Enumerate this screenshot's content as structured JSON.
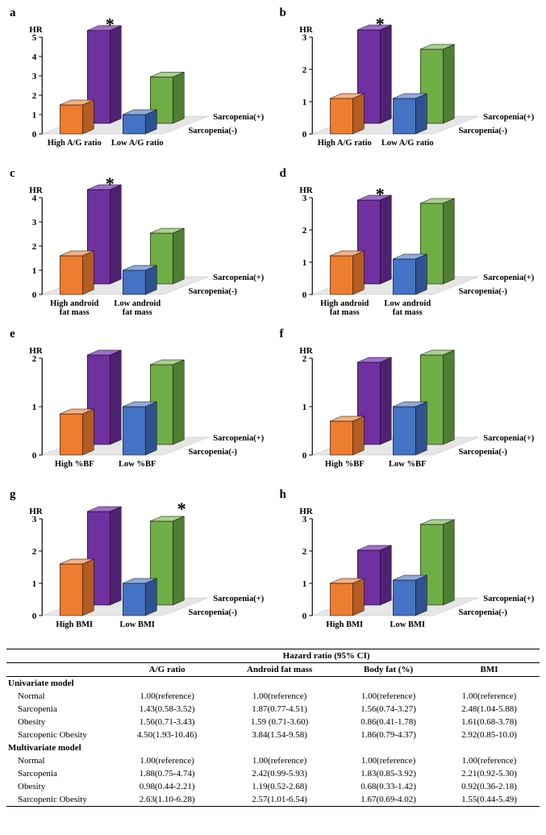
{
  "colors": {
    "orange": "#ed7d31",
    "orange_side": "#b35c23",
    "orange_top": "#f6b183",
    "purple": "#7030a0",
    "purple_side": "#4f2172",
    "purple_top": "#a06ecb",
    "blue": "#4472c4",
    "blue_side": "#2f528f",
    "blue_top": "#8faadc",
    "green": "#70ad47",
    "green_side": "#507e33",
    "green_top": "#a9d18e",
    "floor": "#e7e6e6",
    "floor_edge": "#bfbfbf"
  },
  "axis_title": "HR",
  "depth_labels": [
    "Sarcopenia(+)",
    "Sarcopenia(-)"
  ],
  "panels": {
    "a": {
      "letter": "a",
      "star": true,
      "star_after": "front",
      "ymax": 5,
      "ytick_step": 1,
      "cats": [
        "High A/G ratio",
        "Low A/G ratio"
      ],
      "bars": {
        "front_left": 1.5,
        "back_left": 4.8,
        "front_right": 1.0,
        "back_right": 2.4
      }
    },
    "b": {
      "letter": "b",
      "star": true,
      "star_after": "front",
      "ymax": 3,
      "ytick_step": 1,
      "cats": [
        "High A/G ratio",
        "Low A/G ratio"
      ],
      "bars": {
        "front_left": 1.1,
        "back_left": 2.9,
        "front_right": 1.1,
        "back_right": 2.3
      }
    },
    "c": {
      "letter": "c",
      "star": true,
      "star_after": "front",
      "ymax": 4,
      "ytick_step": 1,
      "cats": [
        "High android\nfat mass",
        "Low android\nfat mass"
      ],
      "bars": {
        "front_left": 1.6,
        "back_left": 3.9,
        "front_right": 1.0,
        "back_right": 2.1
      }
    },
    "d": {
      "letter": "d",
      "star": true,
      "star_after": "front",
      "ymax": 3,
      "ytick_step": 1,
      "cats": [
        "High android\nfat mass",
        "Low android\nfat mass"
      ],
      "bars": {
        "front_left": 1.2,
        "back_left": 2.6,
        "front_right": 1.1,
        "back_right": 2.5
      }
    },
    "e": {
      "letter": "e",
      "star": false,
      "ymax": 2,
      "ytick_step": 1,
      "cats": [
        "High %BF",
        "Low %BF"
      ],
      "bars": {
        "front_left": 0.85,
        "back_left": 1.85,
        "front_right": 1.0,
        "back_right": 1.65
      }
    },
    "f": {
      "letter": "f",
      "star": false,
      "ymax": 2,
      "ytick_step": 1,
      "cats": [
        "High %BF",
        "Low %BF"
      ],
      "bars": {
        "front_left": 0.7,
        "back_left": 1.7,
        "front_right": 1.0,
        "back_right": 1.85
      }
    },
    "g": {
      "letter": "g",
      "star": true,
      "star_after": "back",
      "ymax": 3,
      "ytick_step": 1,
      "cats": [
        "High BMI",
        "Low BMI"
      ],
      "bars": {
        "front_left": 1.6,
        "back_left": 2.9,
        "front_right": 1.0,
        "back_right": 2.6
      }
    },
    "h": {
      "letter": "h",
      "star": false,
      "ymax": 3,
      "ytick_step": 1,
      "cats": [
        "High BMI",
        "Low BMI"
      ],
      "bars": {
        "front_left": 1.0,
        "back_left": 1.7,
        "front_right": 1.1,
        "back_right": 2.5
      }
    }
  },
  "table": {
    "header_span": "Hazard ratio (95% CI)",
    "cols": [
      "A/G ratio",
      "Android fat mass",
      "Body fat (%)",
      "BMI"
    ],
    "sections": [
      {
        "title": "Univariate model",
        "rows": [
          {
            "label": "Normal",
            "cells": [
              "1.00(reference)",
              "1.00(reference)",
              "1.00(reference)",
              "1.00(reference)"
            ]
          },
          {
            "label": "Sarcopenia",
            "cells": [
              "1.43(0.58-3.52)",
              "1.87(0.77-4.51)",
              "1.56(0.74-3.27)",
              "2.48(1.04-5.88)"
            ]
          },
          {
            "label": "Obesity",
            "cells": [
              "1.56(0.71-3.43)",
              "1.59 (0.71-3.60)",
              "0.86(0.41-1.78)",
              "1.61(0.68-3.78)"
            ]
          },
          {
            "label": "Sarcopenic Obesity",
            "cells": [
              "4.50(1.93-10.46)",
              "3.84(1.54-9.58)",
              "1.86(0.79-4.37)",
              "2.92(0.85-10.0)"
            ]
          }
        ]
      },
      {
        "title": "Multivariate model",
        "rows": [
          {
            "label": "Normal",
            "cells": [
              "1.00(reference)",
              "1.00(reference)",
              "1.00(reference)",
              "1.00(reference)"
            ]
          },
          {
            "label": "Sarcopenia",
            "cells": [
              "1.88(0.75-4.74)",
              "2.42(0.99-5.93)",
              "1.83(0.85-3.92)",
              "2.21(0.92-5.30)"
            ]
          },
          {
            "label": "Obesity",
            "cells": [
              "0.98(0.44-2.21)",
              "1.19(0.52-2.68)",
              "0.68(0.33-1.42)",
              "0.92(0.36-2.18)"
            ]
          },
          {
            "label": "Sarcopenic Obesity",
            "cells": [
              "2.63(1.10-6.28)",
              "2.57(1.01-6.54)",
              "1.67(0.69-4.02)",
              "1.55(0.44-5.49)"
            ]
          }
        ]
      }
    ]
  }
}
